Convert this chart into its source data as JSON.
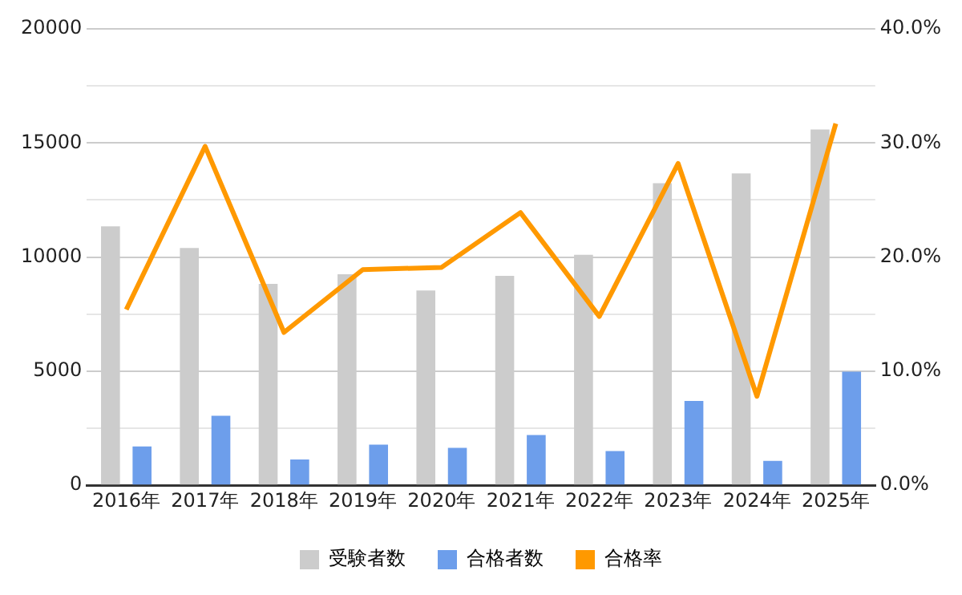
{
  "chart_data": {
    "type": "bar",
    "categories": [
      "2016年",
      "2017年",
      "2018年",
      "2019年",
      "2020年",
      "2021年",
      "2022年",
      "2023年",
      "2024年",
      "2025年"
    ],
    "series": [
      {
        "name": "受験者数",
        "color": "#cccccc",
        "values": [
          11350,
          10400,
          8830,
          9250,
          8540,
          9180,
          10100,
          13240,
          13670,
          15590
        ]
      },
      {
        "name": "合格者数",
        "color": "#6d9eeb",
        "values": [
          1700,
          3050,
          1130,
          1780,
          1640,
          2200,
          1500,
          3700,
          1070,
          4980
        ]
      },
      {
        "name": "合格率",
        "type": "line",
        "axis": "y2",
        "color": "#ff9900",
        "marker": "none",
        "values": [
          15.4,
          29.7,
          13.4,
          18.9,
          19.1,
          23.9,
          14.8,
          28.2,
          7.8,
          31.7
        ]
      }
    ],
    "ylim": [
      0,
      20000
    ],
    "yticks": [
      0,
      {
        "value": 2500,
        "label": null
      },
      5000,
      {
        "value": 7500,
        "label": null
      },
      10000,
      {
        "value": 12500,
        "label": null
      },
      15000,
      {
        "value": 17500,
        "label": null
      },
      20000
    ],
    "y2lim": [
      0,
      40
    ],
    "y2ticks": [
      {
        "value": 0,
        "label": "0.0%"
      },
      {
        "value": 10,
        "label": "10.0%"
      },
      {
        "value": 20,
        "label": "20.0%"
      },
      {
        "value": 30,
        "label": "30.0%"
      },
      {
        "value": 40,
        "label": "40.0%"
      }
    ],
    "grid": "y",
    "legend": "bottom"
  }
}
